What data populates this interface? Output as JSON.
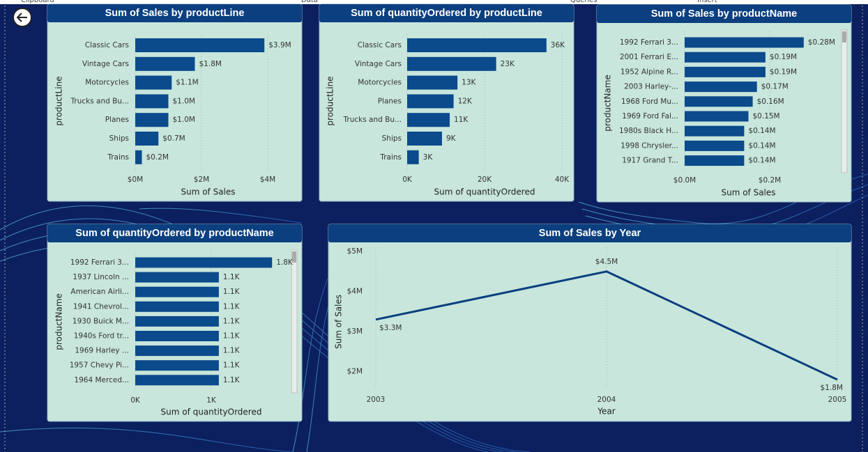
{
  "ribbon": [
    "Clipboard",
    "Data",
    "Queries",
    "Insert"
  ],
  "chart_data": [
    {
      "type": "hbar",
      "title": "Sum of Sales by productLine",
      "xlabel": "Sum of Sales",
      "ylabel": "productLine",
      "categories": [
        "Classic Cars",
        "Vintage Cars",
        "Motorcycles",
        "Trucks and Bu...",
        "Planes",
        "Ships",
        "Trains"
      ],
      "values": [
        3900000,
        1800000,
        1100000,
        1000000,
        1000000,
        700000,
        200000
      ],
      "value_labels": [
        "$3.9M",
        "$1.8M",
        "$1.1M",
        "$1.0M",
        "$1.0M",
        "$0.7M",
        "$0.2M"
      ],
      "xlim": [
        0,
        4400000
      ],
      "xticks": [
        {
          "value": 0,
          "label": "$0M"
        },
        {
          "value": 2000000,
          "label": "$2M"
        },
        {
          "value": 4000000,
          "label": "$4M"
        }
      ],
      "color": "#0b4a8b",
      "grid": true
    },
    {
      "type": "hbar",
      "title": "Sum of quantityOrdered by productLine",
      "xlabel": "Sum of quantityOrdered",
      "ylabel": "productLine",
      "categories": [
        "Classic Cars",
        "Vintage Cars",
        "Motorcycles",
        "Planes",
        "Trucks and Bu...",
        "Ships",
        "Trains"
      ],
      "values": [
        36000,
        23000,
        13000,
        12000,
        11000,
        9000,
        3000
      ],
      "value_labels": [
        "36K",
        "23K",
        "13K",
        "12K",
        "11K",
        "9K",
        "3K"
      ],
      "xlim": [
        0,
        40000
      ],
      "xticks": [
        {
          "value": 0,
          "label": "0K"
        },
        {
          "value": 20000,
          "label": "20K"
        },
        {
          "value": 40000,
          "label": "40K"
        }
      ],
      "color": "#0b4a8b",
      "grid": true
    },
    {
      "type": "hbar",
      "title": "Sum of Sales by productName",
      "xlabel": "Sum of Sales",
      "ylabel": "productName",
      "categories": [
        "1992 Ferrari 3...",
        "2001 Ferrari E...",
        "1952 Alpine R...",
        "2003 Harley-...",
        "1968 Ford Mu...",
        "1969 Ford Fal...",
        "1980s Black H...",
        "1998 Chrysler...",
        "1917 Grand T..."
      ],
      "values": [
        280000,
        190000,
        190000,
        170000,
        160000,
        150000,
        140000,
        140000,
        140000
      ],
      "value_labels": [
        "$0.28M",
        "$0.19M",
        "$0.19M",
        "$0.17M",
        "$0.16M",
        "$0.15M",
        "$0.14M",
        "$0.14M",
        "$0.14M"
      ],
      "xlim": [
        0,
        300000
      ],
      "xticks": [
        {
          "value": 0,
          "label": "$0.0M"
        },
        {
          "value": 200000,
          "label": "$0.2M"
        }
      ],
      "color": "#0b4a8b",
      "grid": true
    },
    {
      "type": "hbar",
      "title": "Sum of quantityOrdered by productName",
      "xlabel": "Sum of quantityOrdered",
      "ylabel": "productName",
      "categories": [
        "1992 Ferrari 3...",
        "1937 Lincoln ...",
        "American Airli...",
        "1941 Chevrol...",
        "1930 Buick M...",
        "1940s Ford tr...",
        "1969 Harley ...",
        "1957 Chevy Pi...",
        "1964 Merced..."
      ],
      "values": [
        1800,
        1100,
        1100,
        1100,
        1100,
        1100,
        1100,
        1100,
        1100
      ],
      "value_labels": [
        "1.8K",
        "1.1K",
        "1.1K",
        "1.1K",
        "1.1K",
        "1.1K",
        "1.1K",
        "1.1K",
        "1.1K"
      ],
      "xlim": [
        0,
        2000
      ],
      "xticks": [
        {
          "value": 0,
          "label": "0K"
        },
        {
          "value": 1000,
          "label": "1K"
        }
      ],
      "color": "#0b4a8b",
      "grid": true
    },
    {
      "type": "line",
      "title": "Sum of Sales by Year",
      "xlabel": "Year",
      "ylabel": "Sum of Sales",
      "x": [
        2003,
        2004,
        2005
      ],
      "values": [
        3300000,
        4500000,
        1800000
      ],
      "value_labels": [
        "$3.3M",
        "$4.5M",
        "$1.8M"
      ],
      "xlim": [
        2003,
        2005
      ],
      "xticks": [
        2003,
        2004,
        2005
      ],
      "ylim": [
        1750000,
        5000000
      ],
      "yticks": [
        {
          "value": 2000000,
          "label": "$2M"
        },
        {
          "value": 3000000,
          "label": "$3M"
        },
        {
          "value": 4000000,
          "label": "$4M"
        },
        {
          "value": 5000000,
          "label": "$5M"
        }
      ],
      "color": "#0b3f7f",
      "grid": true
    }
  ]
}
